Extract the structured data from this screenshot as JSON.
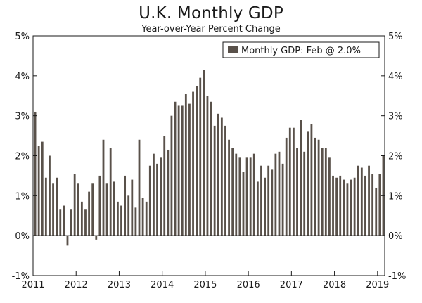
{
  "chart_data": {
    "type": "bar",
    "title": "U.K. Monthly GDP",
    "subtitle": "Year-over-Year Percent Change",
    "xlabel": "",
    "ylabel": "",
    "ylim": [
      -1,
      5
    ],
    "y_ticks": [
      "5%",
      "4%",
      "3%",
      "2%",
      "1%",
      "0%",
      "-1%"
    ],
    "y_tick_values": [
      5,
      4,
      3,
      2,
      1,
      0,
      -1
    ],
    "x_ticks": [
      "2011",
      "2012",
      "2013",
      "2014",
      "2015",
      "2016",
      "2017",
      "2018",
      "2019"
    ],
    "legend": "Monthly GDP: Feb @ 2.0%",
    "legend_position": "top-right",
    "bar_color": "#59514a",
    "grid": false,
    "series": [
      {
        "name": "Monthly GDP",
        "start": "2011-01",
        "values": [
          3.1,
          2.25,
          2.35,
          1.45,
          2.0,
          1.3,
          1.45,
          0.65,
          0.75,
          -0.25,
          0.65,
          1.55,
          1.3,
          0.85,
          0.65,
          1.1,
          1.3,
          -0.1,
          1.5,
          2.4,
          1.3,
          2.2,
          1.35,
          0.85,
          0.75,
          1.5,
          1.0,
          1.4,
          0.7,
          2.4,
          0.95,
          0.85,
          1.75,
          2.05,
          1.8,
          1.95,
          2.5,
          2.15,
          3.0,
          3.35,
          3.25,
          3.25,
          3.55,
          3.3,
          3.6,
          3.75,
          3.95,
          4.15,
          3.5,
          3.35,
          2.75,
          3.05,
          2.95,
          2.75,
          2.4,
          2.2,
          2.05,
          1.95,
          1.6,
          1.95,
          1.95,
          2.05,
          1.35,
          1.75,
          1.45,
          1.75,
          1.65,
          2.05,
          2.1,
          1.8,
          2.45,
          2.7,
          2.7,
          2.2,
          2.9,
          2.1,
          2.6,
          2.8,
          2.45,
          2.4,
          2.2,
          2.2,
          1.95,
          1.5,
          1.45,
          1.5,
          1.4,
          1.3,
          1.4,
          1.45,
          1.75,
          1.7,
          1.5,
          1.75,
          1.55,
          1.2,
          1.55,
          2.0
        ]
      }
    ]
  }
}
